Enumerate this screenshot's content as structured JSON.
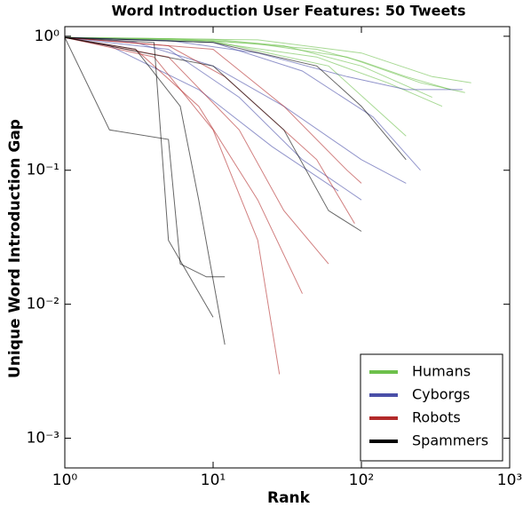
{
  "chart_data": {
    "type": "line",
    "title": "Word Introduction User Features: 50 Tweets",
    "xlabel": "Rank",
    "ylabel": "Unique Word Introduction Gap",
    "xscale": "log",
    "yscale": "log",
    "xlim": [
      1,
      1000
    ],
    "ylim": [
      0.0006,
      1.18
    ],
    "xticks": [
      {
        "value": 1,
        "label": "10⁰"
      },
      {
        "value": 10,
        "label": "10¹"
      },
      {
        "value": 100,
        "label": "10²"
      },
      {
        "value": 1000,
        "label": "10³"
      }
    ],
    "yticks": [
      {
        "value": 0.001,
        "label": "10⁻³"
      },
      {
        "value": 0.01,
        "label": "10⁻²"
      },
      {
        "value": 0.1,
        "label": "10⁻¹"
      },
      {
        "value": 1,
        "label": "10⁰"
      }
    ],
    "legend": "lower right",
    "series": [
      {
        "name": "Humans",
        "color": "#6dc04b",
        "lines": [
          {
            "x": [
              1,
              10,
              50,
              100,
              200,
              400
            ],
            "values": [
              0.98,
              0.93,
              0.8,
              0.65,
              0.5,
              0.4
            ]
          },
          {
            "x": [
              1,
              10,
              30,
              100,
              300
            ],
            "values": [
              0.98,
              0.95,
              0.85,
              0.6,
              0.35
            ]
          },
          {
            "x": [
              1,
              5,
              20,
              80,
              250,
              500
            ],
            "values": [
              0.98,
              0.96,
              0.88,
              0.7,
              0.45,
              0.38
            ]
          },
          {
            "x": [
              1,
              10,
              50,
              150,
              350
            ],
            "values": [
              0.98,
              0.9,
              0.7,
              0.45,
              0.3
            ]
          },
          {
            "x": [
              1,
              20,
              100,
              300,
              550
            ],
            "values": [
              0.98,
              0.94,
              0.75,
              0.5,
              0.45
            ]
          },
          {
            "x": [
              1,
              10,
              60,
              200
            ],
            "values": [
              0.98,
              0.92,
              0.6,
              0.18
            ]
          }
        ]
      },
      {
        "name": "Cyborgs",
        "color": "#4a4fa8",
        "lines": [
          {
            "x": [
              1,
              3,
              10,
              30,
              100,
              200
            ],
            "values": [
              0.98,
              0.9,
              0.6,
              0.3,
              0.12,
              0.08
            ]
          },
          {
            "x": [
              1,
              5,
              20,
              80,
              200,
              480
            ],
            "values": [
              0.98,
              0.93,
              0.75,
              0.5,
              0.4,
              0.4
            ]
          },
          {
            "x": [
              1,
              2,
              8,
              25,
              70
            ],
            "values": [
              0.98,
              0.85,
              0.4,
              0.15,
              0.07
            ]
          },
          {
            "x": [
              1,
              10,
              40,
              120,
              250
            ],
            "values": [
              0.98,
              0.9,
              0.55,
              0.25,
              0.1
            ]
          },
          {
            "x": [
              1,
              5,
              15,
              40,
              100
            ],
            "values": [
              0.98,
              0.8,
              0.35,
              0.12,
              0.06
            ]
          }
        ]
      },
      {
        "name": "Robots",
        "color": "#b22a2a",
        "lines": [
          {
            "x": [
              1,
              5,
              15,
              30,
              60
            ],
            "values": [
              0.98,
              0.7,
              0.2,
              0.05,
              0.02
            ]
          },
          {
            "x": [
              1,
              3,
              8,
              20,
              40
            ],
            "values": [
              0.98,
              0.8,
              0.3,
              0.06,
              0.012
            ]
          },
          {
            "x": [
              1,
              10,
              30,
              80,
              100
            ],
            "values": [
              0.98,
              0.8,
              0.3,
              0.1,
              0.08
            ]
          },
          {
            "x": [
              1,
              4,
              10,
              20,
              28
            ],
            "values": [
              0.98,
              0.7,
              0.2,
              0.03,
              0.003
            ]
          },
          {
            "x": [
              1,
              5,
              12,
              50,
              90
            ],
            "values": [
              0.98,
              0.85,
              0.5,
              0.12,
              0.04
            ]
          }
        ]
      },
      {
        "name": "Spammers",
        "color": "#000000",
        "lines": [
          {
            "x": [
              1,
              2,
              5,
              6,
              9,
              12
            ],
            "values": [
              0.98,
              0.2,
              0.17,
              0.02,
              0.016,
              0.016
            ]
          },
          {
            "x": [
              1,
              4,
              5,
              10
            ],
            "values": [
              0.98,
              0.9,
              0.03,
              0.008
            ]
          },
          {
            "x": [
              1,
              3,
              6,
              8,
              12
            ],
            "values": [
              0.98,
              0.8,
              0.3,
              0.06,
              0.005
            ]
          },
          {
            "x": [
              1,
              10,
              30,
              60,
              100
            ],
            "values": [
              0.98,
              0.6,
              0.2,
              0.05,
              0.035
            ]
          },
          {
            "x": [
              1,
              10,
              50,
              100,
              200
            ],
            "values": [
              0.98,
              0.9,
              0.6,
              0.3,
              0.12
            ]
          }
        ]
      }
    ]
  }
}
